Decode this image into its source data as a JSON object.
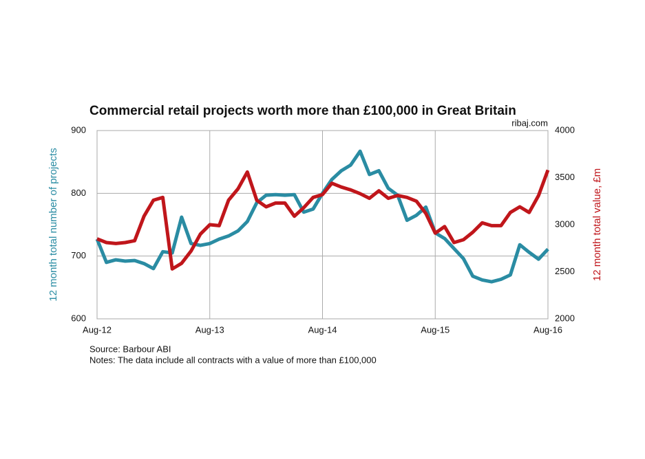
{
  "chart_data": {
    "type": "line",
    "title": "Commercial retail projects worth more than £100,000 in Great Britain",
    "subtitle": "ribaj.com",
    "ylabel": "12 month total number of projects",
    "y2label": "12 month total value, £m",
    "source": "Source: Barbour ABI",
    "notes": "Notes: The data include all contracts with a value of more than £100,000",
    "categories": [
      "Aug-12",
      null,
      null,
      null,
      null,
      null,
      null,
      null,
      null,
      null,
      null,
      null,
      "Aug-13",
      null,
      null,
      null,
      null,
      null,
      null,
      null,
      null,
      null,
      null,
      null,
      "Aug-14",
      null,
      null,
      null,
      null,
      null,
      null,
      null,
      null,
      null,
      null,
      null,
      "Aug-15",
      null,
      null,
      null,
      null,
      null,
      null,
      null,
      null,
      null,
      null,
      null,
      "Aug-16"
    ],
    "series": [
      {
        "name": "12 month total number of projects",
        "color": "#2a8ca3",
        "axis": "y",
        "values": [
          727,
          690,
          694,
          692,
          693,
          688,
          680,
          707,
          705,
          762,
          720,
          717,
          720,
          727,
          732,
          740,
          755,
          785,
          797,
          798,
          797,
          798,
          770,
          775,
          800,
          822,
          836,
          845,
          867,
          830,
          836,
          808,
          797,
          757,
          765,
          778,
          737,
          728,
          712,
          696,
          668,
          662,
          659,
          663,
          670,
          718,
          706,
          695,
          711
        ]
      },
      {
        "name": "12 month total value, £m",
        "color": "#c0161b",
        "axis": "y2",
        "values": [
          2850,
          2810,
          2800,
          2810,
          2830,
          3090,
          3260,
          3290,
          2530,
          2590,
          2720,
          2900,
          3000,
          2990,
          3260,
          3380,
          3560,
          3260,
          3190,
          3230,
          3230,
          3090,
          3180,
          3290,
          3320,
          3440,
          3400,
          3370,
          3330,
          3280,
          3360,
          3280,
          3310,
          3290,
          3250,
          3120,
          2910,
          2980,
          2810,
          2840,
          2920,
          3020,
          2990,
          2990,
          3130,
          3190,
          3130,
          3310,
          3580
        ]
      }
    ],
    "ylim": [
      600,
      900
    ],
    "yticks": [
      600,
      700,
      800,
      900
    ],
    "y2lim": [
      2000,
      4000
    ],
    "y2ticks": [
      2000,
      2500,
      3000,
      3500,
      4000
    ],
    "grid": true
  }
}
